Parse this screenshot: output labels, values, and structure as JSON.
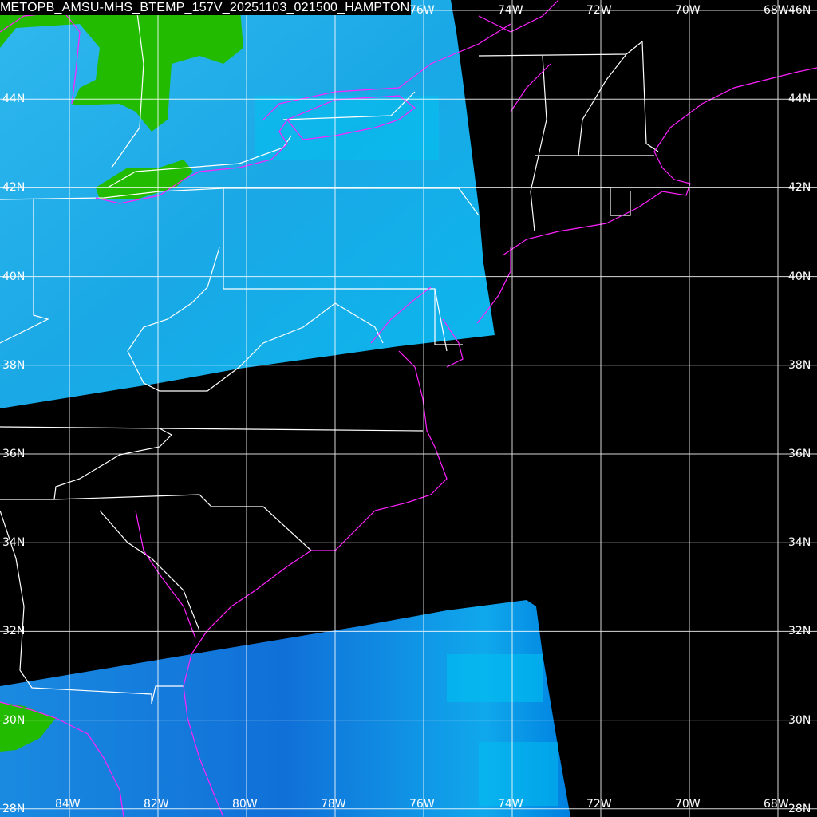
{
  "title": "METOPB_AMSU-MHS_BTEMP_157V_20251103_021500_HAMPTON",
  "lon_labels": [
    "84W",
    "82W",
    "80W",
    "78W",
    "76W",
    "74W",
    "72W",
    "70W",
    "68W"
  ],
  "top_lon_labels": [
    "76W",
    "74W",
    "72W",
    "70W",
    "68W"
  ],
  "lat_labels": [
    "46N",
    "44N",
    "42N",
    "40N",
    "38N",
    "36N",
    "34N",
    "32N",
    "30N",
    "28N"
  ],
  "colors": {
    "background": "#000000",
    "swath_light": "#1aaee8",
    "swath_bright": "#00c8f0",
    "swath_dark": "#1070d8",
    "land_warm": "#22bb00",
    "coastline": "#ff22ff",
    "borders": "#ffffff",
    "grid": "#ffffff"
  }
}
